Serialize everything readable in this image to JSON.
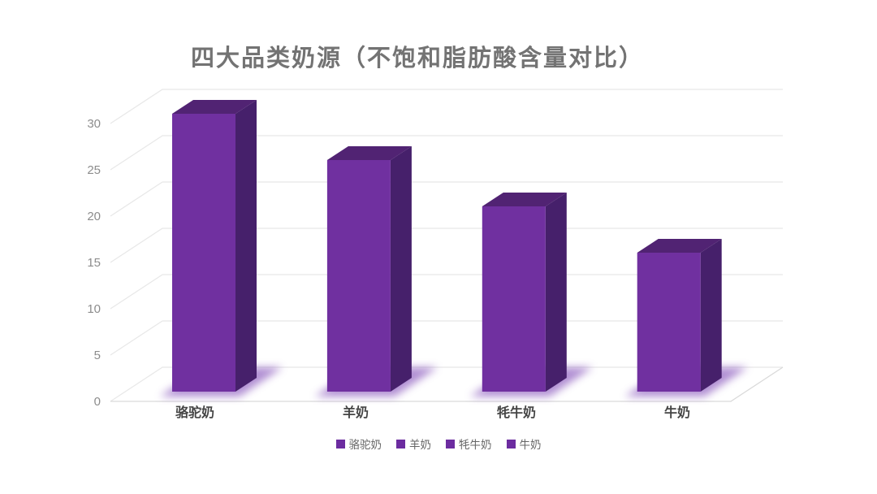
{
  "page": {
    "background": "#FFFFFF"
  },
  "chart_data": {
    "type": "bar",
    "variant": "3d-column",
    "title": "四大品类奶源（不饱和脂肪酸含量对比）",
    "categories": [
      "骆驼奶",
      "羊奶",
      "牦牛奶",
      "牛奶"
    ],
    "values": [
      30,
      25,
      20,
      15
    ],
    "xlabel": "",
    "ylabel": "",
    "ylim": [
      0,
      30
    ],
    "y_ticks": [
      0,
      5,
      10,
      15,
      20,
      25,
      30
    ],
    "grid": true,
    "legend": {
      "position": "bottom",
      "entries": [
        "骆驼奶",
        "羊奶",
        "牦牛奶",
        "牛奶"
      ]
    }
  },
  "colors": {
    "bar_front": "#7030A0",
    "bar_side": "#46206B",
    "bar_top": "#512373",
    "glow": "#8F5FC0",
    "gridline": "#E8E8E8",
    "floor_edge": "#D9D9D9",
    "tick_text": "#8C8C8C",
    "category_text": "#444444",
    "legend_text": "#666666",
    "title_text": "#737373",
    "legend_swatch": "#6C2CA0"
  }
}
